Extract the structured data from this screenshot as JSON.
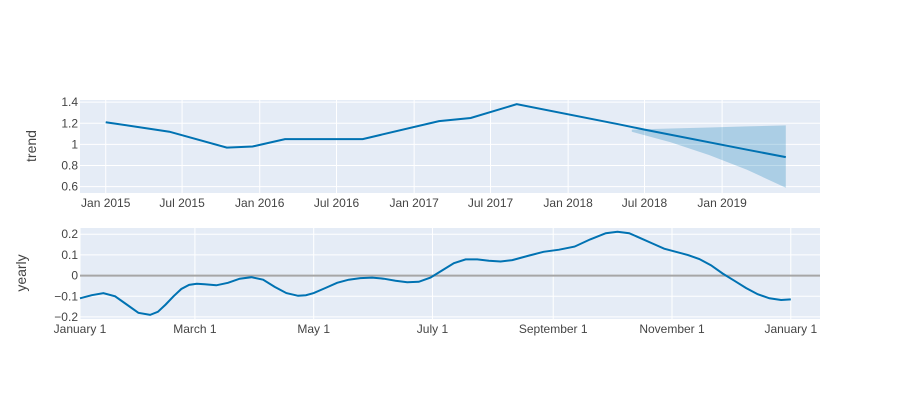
{
  "chart_data": [
    {
      "type": "line",
      "name": "trend-panel",
      "ylabel": "trend",
      "xlabel": "",
      "x_axis_type": "date",
      "xlim": [
        "2014-11-01",
        "2019-08-21"
      ],
      "ylim": [
        0.54,
        1.42
      ],
      "x_ticks": [
        {
          "value": "2015-01-01",
          "label": "Jan 2015"
        },
        {
          "value": "2015-07-01",
          "label": "Jul 2015"
        },
        {
          "value": "2016-01-01",
          "label": "Jan 2016"
        },
        {
          "value": "2016-07-01",
          "label": "Jul 2016"
        },
        {
          "value": "2017-01-01",
          "label": "Jan 2017"
        },
        {
          "value": "2017-07-01",
          "label": "Jul 2017"
        },
        {
          "value": "2018-01-01",
          "label": "Jan 2018"
        },
        {
          "value": "2018-07-01",
          "label": "Jul 2018"
        },
        {
          "value": "2019-01-01",
          "label": "Jan 2019"
        }
      ],
      "y_ticks": [
        {
          "value": 0.6,
          "label": "0.6"
        },
        {
          "value": 0.8,
          "label": "0.8"
        },
        {
          "value": 1.0,
          "label": "1"
        },
        {
          "value": 1.2,
          "label": "1.2"
        },
        {
          "value": 1.4,
          "label": "1.4"
        }
      ],
      "grid": true,
      "line_color": "#0072B2",
      "band_color": "#0072B2",
      "series": [
        {
          "x": [
            "2015-01-01",
            "2015-06-01",
            "2015-10-15",
            "2015-12-15",
            "2016-03-01",
            "2016-09-01",
            "2017-03-01",
            "2017-05-15",
            "2017-09-01",
            "2018-05-01",
            "2018-07-01",
            "2019-03-01",
            "2019-06-01"
          ],
          "y": [
            1.21,
            1.12,
            0.97,
            0.98,
            1.05,
            1.05,
            1.22,
            1.25,
            1.38,
            1.19,
            1.14,
            0.95,
            0.88
          ]
        }
      ],
      "uncertainty_band": {
        "x": [
          "2018-06-01",
          "2018-09-01",
          "2018-12-01",
          "2019-03-01",
          "2019-06-01"
        ],
        "upper": [
          1.14,
          1.15,
          1.16,
          1.17,
          1.18
        ],
        "lower": [
          1.12,
          1.02,
          0.9,
          0.76,
          0.59
        ]
      }
    },
    {
      "type": "line",
      "name": "yearly-panel",
      "ylabel": "yearly",
      "xlabel": "",
      "xlim": [
        0,
        380
      ],
      "ylim": [
        -0.21,
        0.23
      ],
      "x_ticks": [
        {
          "value": 0,
          "label": "January  1"
        },
        {
          "value": 59,
          "label": "March  1"
        },
        {
          "value": 120,
          "label": "May  1"
        },
        {
          "value": 181,
          "label": "July  1"
        },
        {
          "value": 243,
          "label": "September  1"
        },
        {
          "value": 304,
          "label": "November  1"
        },
        {
          "value": 365,
          "label": "January  1"
        }
      ],
      "y_ticks": [
        {
          "value": -0.2,
          "label": "−0.2"
        },
        {
          "value": -0.1,
          "label": "−0.1"
        },
        {
          "value": 0,
          "label": "0"
        },
        {
          "value": 0.1,
          "label": "0.1"
        },
        {
          "value": 0.2,
          "label": "0.2"
        }
      ],
      "grid": true,
      "zero_line": true,
      "line_color": "#0072B2",
      "series": [
        {
          "x": [
            0,
            6,
            12,
            18,
            24,
            30,
            36,
            40,
            44,
            48,
            52,
            56,
            60,
            64,
            70,
            76,
            82,
            88,
            94,
            100,
            106,
            112,
            116,
            120,
            126,
            132,
            138,
            144,
            150,
            156,
            162,
            168,
            174,
            180,
            186,
            192,
            198,
            204,
            210,
            216,
            222,
            230,
            238,
            246,
            254,
            262,
            270,
            276,
            282,
            288,
            294,
            300,
            306,
            312,
            318,
            324,
            330,
            336,
            342,
            348,
            354,
            360,
            365
          ],
          "y": [
            -0.11,
            -0.095,
            -0.085,
            -0.1,
            -0.14,
            -0.18,
            -0.19,
            -0.175,
            -0.14,
            -0.1,
            -0.065,
            -0.045,
            -0.04,
            -0.042,
            -0.047,
            -0.035,
            -0.015,
            -0.008,
            -0.02,
            -0.055,
            -0.085,
            -0.098,
            -0.095,
            -0.085,
            -0.06,
            -0.035,
            -0.02,
            -0.012,
            -0.01,
            -0.015,
            -0.025,
            -0.032,
            -0.03,
            -0.01,
            0.025,
            0.06,
            0.078,
            0.078,
            0.072,
            0.068,
            0.075,
            0.095,
            0.115,
            0.125,
            0.14,
            0.175,
            0.205,
            0.212,
            0.205,
            0.18,
            0.155,
            0.13,
            0.115,
            0.1,
            0.08,
            0.05,
            0.01,
            -0.025,
            -0.06,
            -0.09,
            -0.11,
            -0.118,
            -0.115
          ]
        }
      ]
    }
  ]
}
